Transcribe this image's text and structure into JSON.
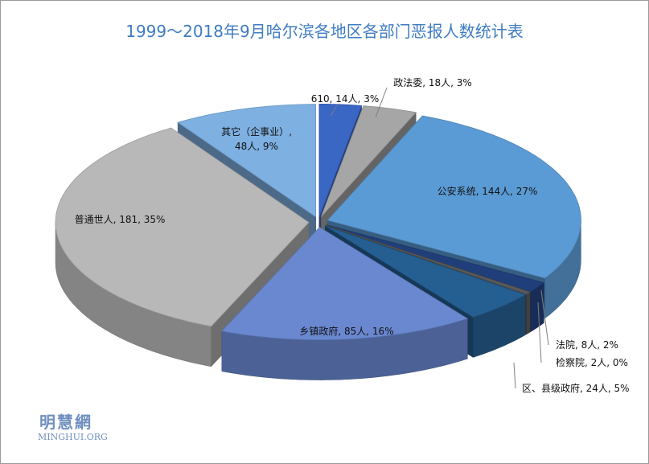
{
  "chart_data": {
    "type": "pie3d",
    "title": "1999～2018年9月哈尔滨各地区各部门恶报人数统计表",
    "categories": [
      "610",
      "政法委",
      "公安系统",
      "法院",
      "检察院",
      "区、县级政府",
      "乡镇政府",
      "普通世人",
      "其它（企事业）"
    ],
    "values": [
      14,
      18,
      144,
      8,
      2,
      24,
      85,
      181,
      48
    ],
    "value_labels": [
      "610, 14人, 3%",
      "政法委, 18人, 3%",
      "公安系统, 144人, 27%",
      "法院, 8人, 2%",
      "检察院, 2人, 0%",
      "区、县级政府, 24人, 5%",
      "乡镇政府, 85人, 16%",
      "普通世人, 181, 35%",
      "其它（企事业）,\n48人, 9%"
    ],
    "colors": [
      "#3a66c4",
      "#a6a6a6",
      "#5b9bd5",
      "#203f7a",
      "#595959",
      "#255e91",
      "#6a88d0",
      "#b8b8b8",
      "#7eb0e2"
    ]
  },
  "watermark": {
    "name": "明慧網",
    "site": "MINGHUI.ORG"
  }
}
